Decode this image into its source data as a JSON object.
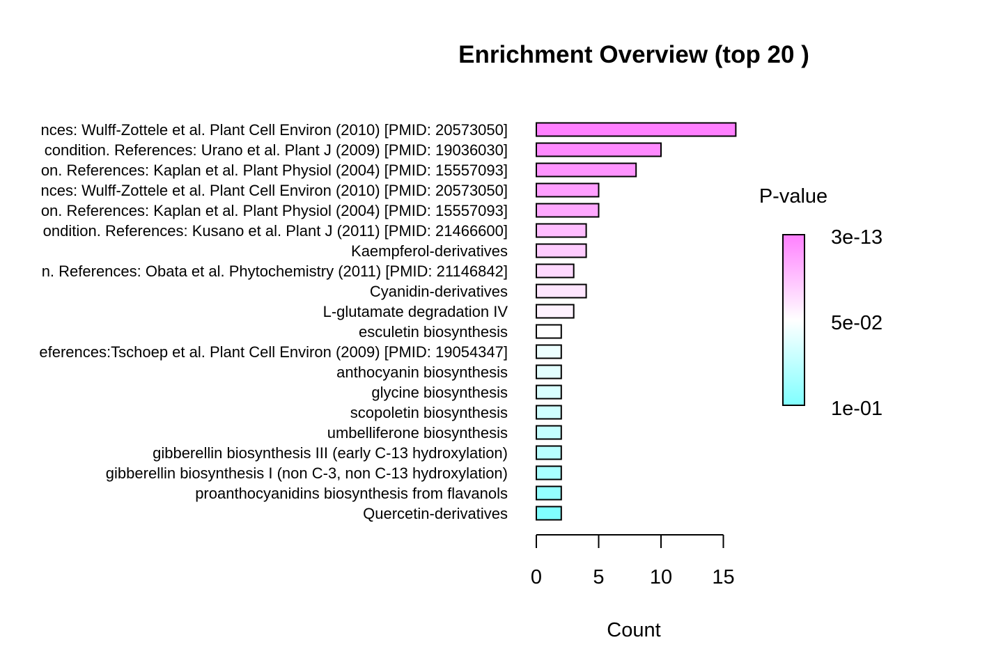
{
  "chart_data": {
    "type": "bar",
    "orientation": "horizontal",
    "title": "Enrichment Overview (top  20 )",
    "xlabel": "Count",
    "ylabel": "",
    "xlim": [
      0,
      16
    ],
    "xticks": [
      0,
      5,
      10,
      15
    ],
    "grid": false,
    "legend_position": "right",
    "categories": [
      "nces: Wulff-Zottele et al. Plant Cell Environ (2010) [PMID: 20573050]",
      "condition. References: Urano et al. Plant J (2009) [PMID: 19036030]",
      "on. References: Kaplan et al. Plant Physiol (2004) [PMID: 15557093]",
      "nces: Wulff-Zottele et al. Plant Cell Environ (2010) [PMID: 20573050]",
      "on. References: Kaplan et al. Plant Physiol (2004) [PMID: 15557093]",
      "ondition. References: Kusano et al. Plant J (2011) [PMID: 21466600]",
      "Kaempferol-derivatives",
      "n. References: Obata et al. Phytochemistry (2011) [PMID: 21146842]",
      "Cyanidin-derivatives",
      "L-glutamate degradation IV",
      "esculetin biosynthesis",
      "eferences:Tschoep et al. Plant Cell Environ (2009) [PMID: 19054347]",
      "anthocyanin biosynthesis",
      "glycine biosynthesis",
      "scopoletin biosynthesis",
      "umbelliferone biosynthesis",
      "gibberellin biosynthesis III (early C-13 hydroxylation)",
      "gibberellin biosynthesis I (non C-3, non C-13 hydroxylation)",
      "proanthocyanidins biosynthesis from flavanols",
      "Quercetin-derivatives"
    ],
    "values": [
      16,
      10,
      8,
      5,
      5,
      4,
      4,
      3,
      4,
      3,
      2,
      2,
      2,
      2,
      2,
      2,
      2,
      2,
      2,
      2
    ],
    "bar_colors": [
      "#FF80FF",
      "#FF8AFF",
      "#FF94FF",
      "#FF9EFF",
      "#FFA8FF",
      "#FFBDFF",
      "#FFCCFF",
      "#FFD9FF",
      "#FFE6FF",
      "#FFF2FF",
      "#FFFFFF",
      "#EDFFFF",
      "#E3FFFF",
      "#D9FFFF",
      "#CFFFFF",
      "#C4FFFF",
      "#B8FFFF",
      "#A8FFFF",
      "#94FFFF",
      "#80FFFF"
    ],
    "colorbar": {
      "title": "P-value",
      "labels": [
        "3e-13",
        "5e-02",
        "1e-01"
      ],
      "color_top": "#FF80FF",
      "color_mid": "#FFFFFF",
      "color_bottom": "#80FFFF"
    }
  }
}
